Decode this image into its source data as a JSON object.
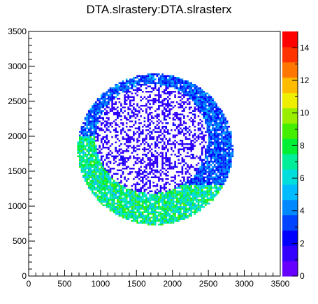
{
  "chart_data": {
    "type": "heatmap",
    "title": "DTA.slrastery:DTA.slrasterx",
    "xlabel": "",
    "ylabel": "",
    "xlim": [
      0,
      3500
    ],
    "ylim": [
      0,
      3500
    ],
    "xticks": [
      "0",
      "500",
      "1000",
      "1500",
      "2000",
      "2500",
      "3000",
      "3500"
    ],
    "yticks": [
      "0",
      "500",
      "1000",
      "1500",
      "2000",
      "2500",
      "3000",
      "3500"
    ],
    "z_range": [
      0,
      15
    ],
    "colorbar_ticks": [
      "0",
      "2",
      "4",
      "6",
      "8",
      "10",
      "12",
      "14"
    ],
    "grid": false,
    "palette": [
      "#6600ff",
      "#3300ff",
      "#0000ff",
      "#0044ff",
      "#0088ff",
      "#00bbff",
      "#00dddd",
      "#00ee99",
      "#00ee33",
      "#44ee00",
      "#99ee00",
      "#eeee00",
      "#ffbb00",
      "#ff7700",
      "#ff3300",
      "#ff0000"
    ],
    "distribution": {
      "ring_center": [
        1750,
        1800
      ],
      "outer_radius": 1080,
      "inner_center": [
        1700,
        1950
      ],
      "inner_radius": 780,
      "ring_counts_typical": [
        2,
        5
      ],
      "hotspot_lower_left_counts": [
        5,
        9
      ],
      "inner_counts_sparse": [
        1,
        2
      ]
    }
  }
}
